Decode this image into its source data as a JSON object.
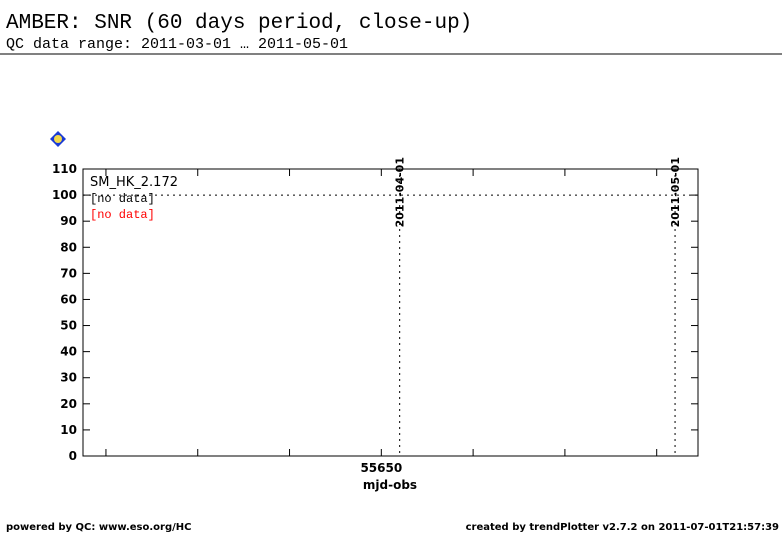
{
  "chart_data": {
    "type": "line",
    "title": "AMBER: SNR (60 days period, close-up)",
    "subtitle": "QC data range: 2011-03-01 … 2011-05-01",
    "xlabel": "mjd-obs",
    "xlim": [
      55617.5,
      55684.5
    ],
    "xticks": [
      55650
    ],
    "xminorticks": [
      55620,
      55630,
      55640,
      55660,
      55670,
      55680
    ],
    "ylim": [
      0,
      110
    ],
    "yticks": [
      0,
      10,
      20,
      30,
      40,
      50,
      60,
      70,
      80,
      90,
      100,
      110
    ],
    "reference_lines": [
      {
        "x": 55652,
        "label": "2011-04-01"
      },
      {
        "x": 55682,
        "label": "2011-05-01"
      }
    ],
    "hline": 100,
    "legend": {
      "title": "SM_HK_2.172",
      "entries": [
        {
          "label": "[no data]",
          "color": "#000000"
        },
        {
          "label": "[no data]",
          "color": "#ff0000"
        }
      ]
    },
    "footer_left": "powered by QC: www.eso.org/HC",
    "footer_right": "created by trendPlotter v2.7.2 on 2011-07-01T21:57:39"
  }
}
